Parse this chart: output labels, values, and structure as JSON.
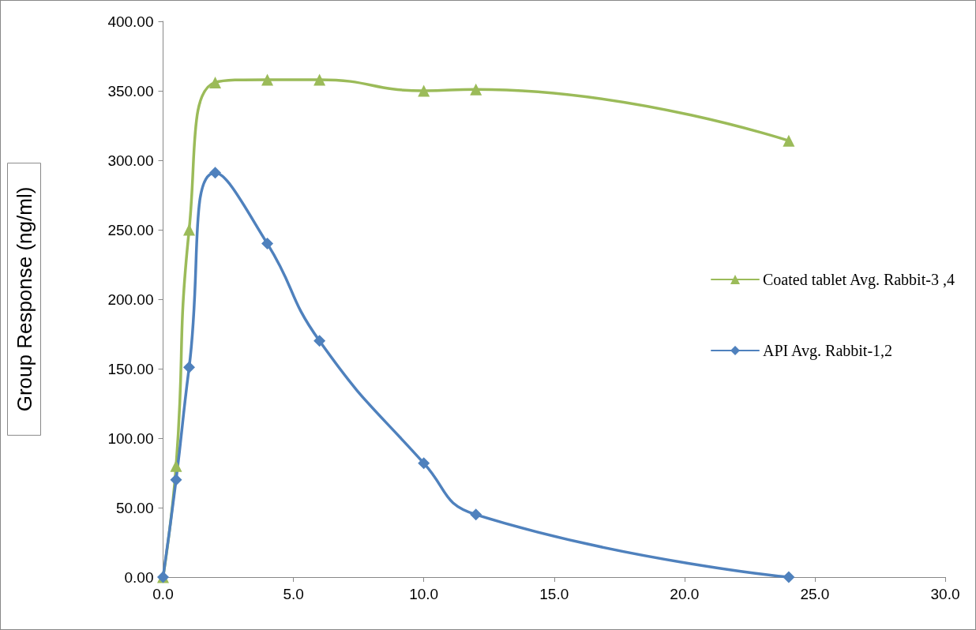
{
  "chart_data": {
    "type": "line",
    "ylabel": "Group Response (ng/ml)",
    "series": [
      {
        "name": "Coated tablet Avg. Rabbit-3 ,4",
        "color": "#9bbb59",
        "marker": "triangle",
        "x": [
          0,
          0.5,
          1,
          2,
          4,
          6,
          10,
          12,
          24
        ],
        "values": [
          0,
          80,
          250,
          356,
          358,
          358,
          350,
          351,
          314
        ]
      },
      {
        "name": "API Avg. Rabbit-1,2",
        "color": "#4f81bd",
        "marker": "diamond",
        "x": [
          0,
          0.5,
          1,
          2,
          4,
          6,
          10,
          12,
          24
        ],
        "values": [
          0,
          70,
          151,
          291,
          240,
          170,
          82,
          45,
          0
        ]
      }
    ],
    "xlim": [
      0,
      30
    ],
    "xticks": [
      {
        "value": 0,
        "label": "0.0"
      },
      {
        "value": 5,
        "label": "5.0"
      },
      {
        "value": 10,
        "label": "10.0"
      },
      {
        "value": 15,
        "label": "15.0"
      },
      {
        "value": 20,
        "label": "20.0"
      },
      {
        "value": 25,
        "label": "25.0"
      },
      {
        "value": 30,
        "label": "30.0"
      }
    ],
    "ylim": [
      0,
      400
    ],
    "yticks": [
      {
        "value": 0,
        "label": "0.00"
      },
      {
        "value": 50,
        "label": "50.00"
      },
      {
        "value": 100,
        "label": "100.00"
      },
      {
        "value": 150,
        "label": "150.00"
      },
      {
        "value": 200,
        "label": "200.00"
      },
      {
        "value": 250,
        "label": "250.00"
      },
      {
        "value": 300,
        "label": "300.00"
      },
      {
        "value": 350,
        "label": "350.00"
      },
      {
        "value": 400,
        "label": "400.00"
      }
    ],
    "grid": false,
    "legend": "right",
    "line_style": "solid"
  }
}
